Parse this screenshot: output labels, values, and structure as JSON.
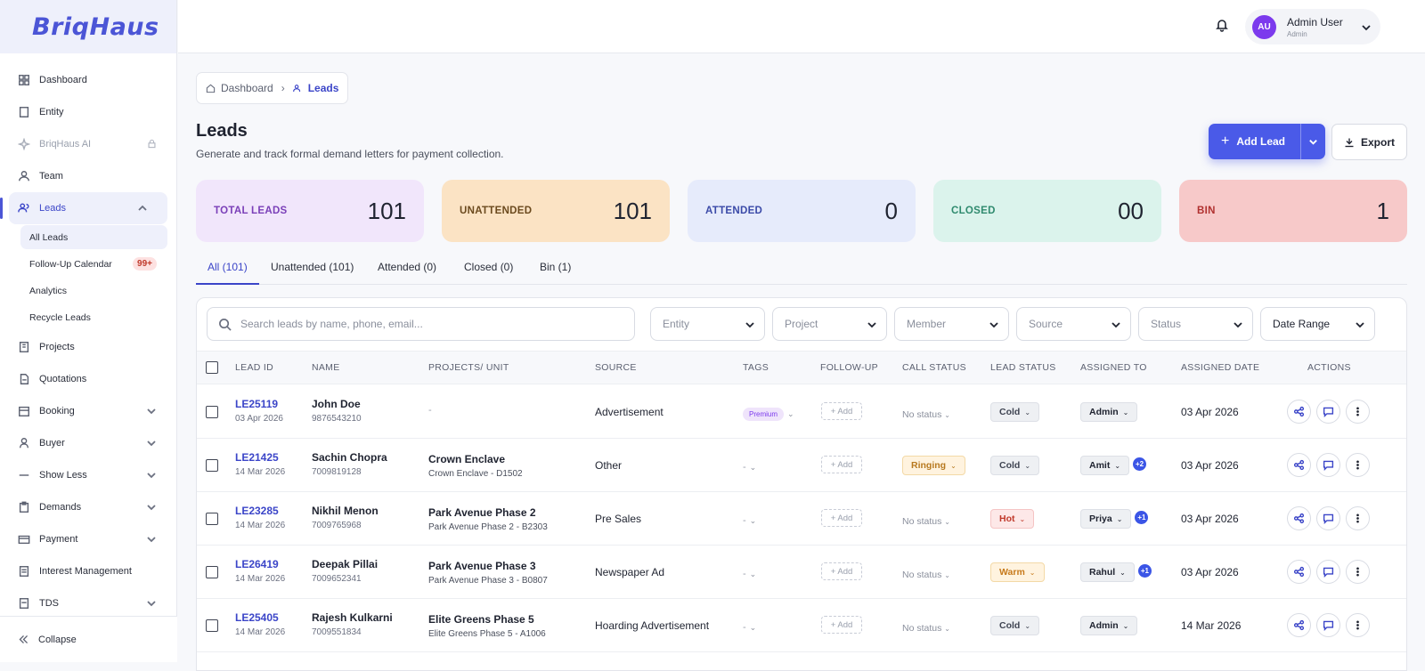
{
  "brand": {
    "logo": "BriqHaus"
  },
  "sidebar": {
    "items": [
      {
        "label": "Dashboard",
        "icon": "grid-icon"
      },
      {
        "label": "Entity",
        "icon": "building-icon"
      },
      {
        "label": "BriqHaus AI",
        "icon": "sparkle-icon"
      },
      {
        "label": "Team",
        "icon": "team-icon"
      },
      {
        "label": "Leads",
        "icon": "users-icon"
      },
      {
        "label": "Projects",
        "icon": "projects-icon"
      },
      {
        "label": "Quotations",
        "icon": "document-icon"
      },
      {
        "label": "Booking",
        "icon": "calendar-icon"
      },
      {
        "label": "Buyer",
        "icon": "user-icon"
      },
      {
        "label": "Show Less",
        "icon": "minus-icon"
      },
      {
        "label": "Demands",
        "icon": "clipboard-icon"
      },
      {
        "label": "Payment",
        "icon": "payment-icon"
      },
      {
        "label": "Interest Management",
        "icon": "ledger-icon"
      },
      {
        "label": "TDS",
        "icon": "tds-icon"
      }
    ],
    "lead_sub": [
      {
        "label": "All Leads"
      },
      {
        "label": "Follow-Up Calendar",
        "badge": "99+"
      },
      {
        "label": "Analytics"
      },
      {
        "label": "Recycle Leads"
      }
    ],
    "collapse_label": "Collapse"
  },
  "header": {
    "user_name": "Admin User",
    "user_role": "Admin",
    "avatar_initials": "AU"
  },
  "breadcrumb": {
    "home": "Dashboard",
    "current": "Leads"
  },
  "page": {
    "title": "Leads",
    "subtitle": "Generate and track formal demand letters for payment collection.",
    "add_label": "Add Lead",
    "export_label": "Export"
  },
  "stats": [
    {
      "label": "TOTAL LEADS",
      "value": "101",
      "bg": "#f1e6fb",
      "fg": "#7a3fb8"
    },
    {
      "label": "UNATTENDED",
      "value": "101",
      "bg": "#fbe3c4",
      "fg": "#6b4a1e"
    },
    {
      "label": "ATTENDED",
      "value": "0",
      "bg": "#e6ebfb",
      "fg": "#3b4aa8"
    },
    {
      "label": "CLOSED",
      "value": "00",
      "bg": "#dbf3ec",
      "fg": "#2f8a6e"
    },
    {
      "label": "BIN",
      "value": "1",
      "bg": "#f7c9c9",
      "fg": "#b0302f"
    }
  ],
  "tabs": [
    {
      "label": "All (101)"
    },
    {
      "label": "Unattended (101)"
    },
    {
      "label": "Attended (0)"
    },
    {
      "label": "Closed (0)"
    },
    {
      "label": "Bin (1)"
    }
  ],
  "search": {
    "placeholder": "Search leads by name, phone, email..."
  },
  "filters": [
    {
      "label": "Entity"
    },
    {
      "label": "Project"
    },
    {
      "label": "Member"
    },
    {
      "label": "Source"
    },
    {
      "label": "Status"
    },
    {
      "label": "Date Range"
    }
  ],
  "table": {
    "headers": [
      "LEAD ID",
      "NAME",
      "PROJECTS/ UNIT",
      "SOURCE",
      "TAGS",
      "FOLLOW-UP",
      "CALL STATUS",
      "LEAD STATUS",
      "ASSIGNED TO",
      "ASSIGNED DATE",
      "ACTIONS"
    ],
    "follow_up_add": "+ Add",
    "rows": [
      {
        "id": "LE25119",
        "date": "03 Apr 2026",
        "name": "John Doe",
        "phone": "9876543210",
        "project": "",
        "unit": "",
        "project_dash": "-",
        "source": "Advertisement",
        "tag": "Premium",
        "tag_dash": "",
        "call_status": "No status",
        "call_type": "none",
        "lead_status": "Cold",
        "lead_type": "cold",
        "assigned": "Admin",
        "extra": "",
        "assigned_date": "03 Apr 2026"
      },
      {
        "id": "LE21425",
        "date": "14 Mar 2026",
        "name": "Sachin Chopra",
        "phone": "7009819128",
        "project": "Crown Enclave",
        "unit": "Crown Enclave - D1502",
        "project_dash": "",
        "source": "Other",
        "tag": "",
        "tag_dash": "-",
        "call_status": "Ringing",
        "call_type": "ringing",
        "lead_status": "Cold",
        "lead_type": "cold",
        "assigned": "Amit",
        "extra": "+2",
        "assigned_date": "03 Apr 2026"
      },
      {
        "id": "LE23285",
        "date": "14 Mar 2026",
        "name": "Nikhil Menon",
        "phone": "7009765968",
        "project": "Park Avenue Phase 2",
        "unit": "Park Avenue Phase 2 - B2303",
        "project_dash": "",
        "source": "Pre Sales",
        "tag": "",
        "tag_dash": "-",
        "call_status": "No status",
        "call_type": "none",
        "lead_status": "Hot",
        "lead_type": "hot",
        "assigned": "Priya",
        "extra": "+1",
        "assigned_date": "03 Apr 2026"
      },
      {
        "id": "LE26419",
        "date": "14 Mar 2026",
        "name": "Deepak Pillai",
        "phone": "7009652341",
        "project": "Park Avenue Phase 3",
        "unit": "Park Avenue Phase 3 - B0807",
        "project_dash": "",
        "source": "Newspaper Ad",
        "tag": "",
        "tag_dash": "-",
        "call_status": "No status",
        "call_type": "none",
        "lead_status": "Warm",
        "lead_type": "warm",
        "assigned": "Rahul",
        "extra": "+1",
        "assigned_date": "03 Apr 2026"
      },
      {
        "id": "LE25405",
        "date": "14 Mar 2026",
        "name": "Rajesh Kulkarni",
        "phone": "7009551834",
        "project": "Elite Greens Phase 5",
        "unit": "Elite Greens Phase 5 - A1006",
        "project_dash": "",
        "source": "Hoarding Advertisement",
        "tag": "",
        "tag_dash": "-",
        "call_status": "No status",
        "call_type": "none",
        "lead_status": "Cold",
        "lead_type": "cold",
        "assigned": "Admin",
        "extra": "",
        "assigned_date": "14 Mar 2026"
      }
    ]
  },
  "colors": {
    "accent": "#4a5ae8",
    "link": "#3b45c8"
  }
}
